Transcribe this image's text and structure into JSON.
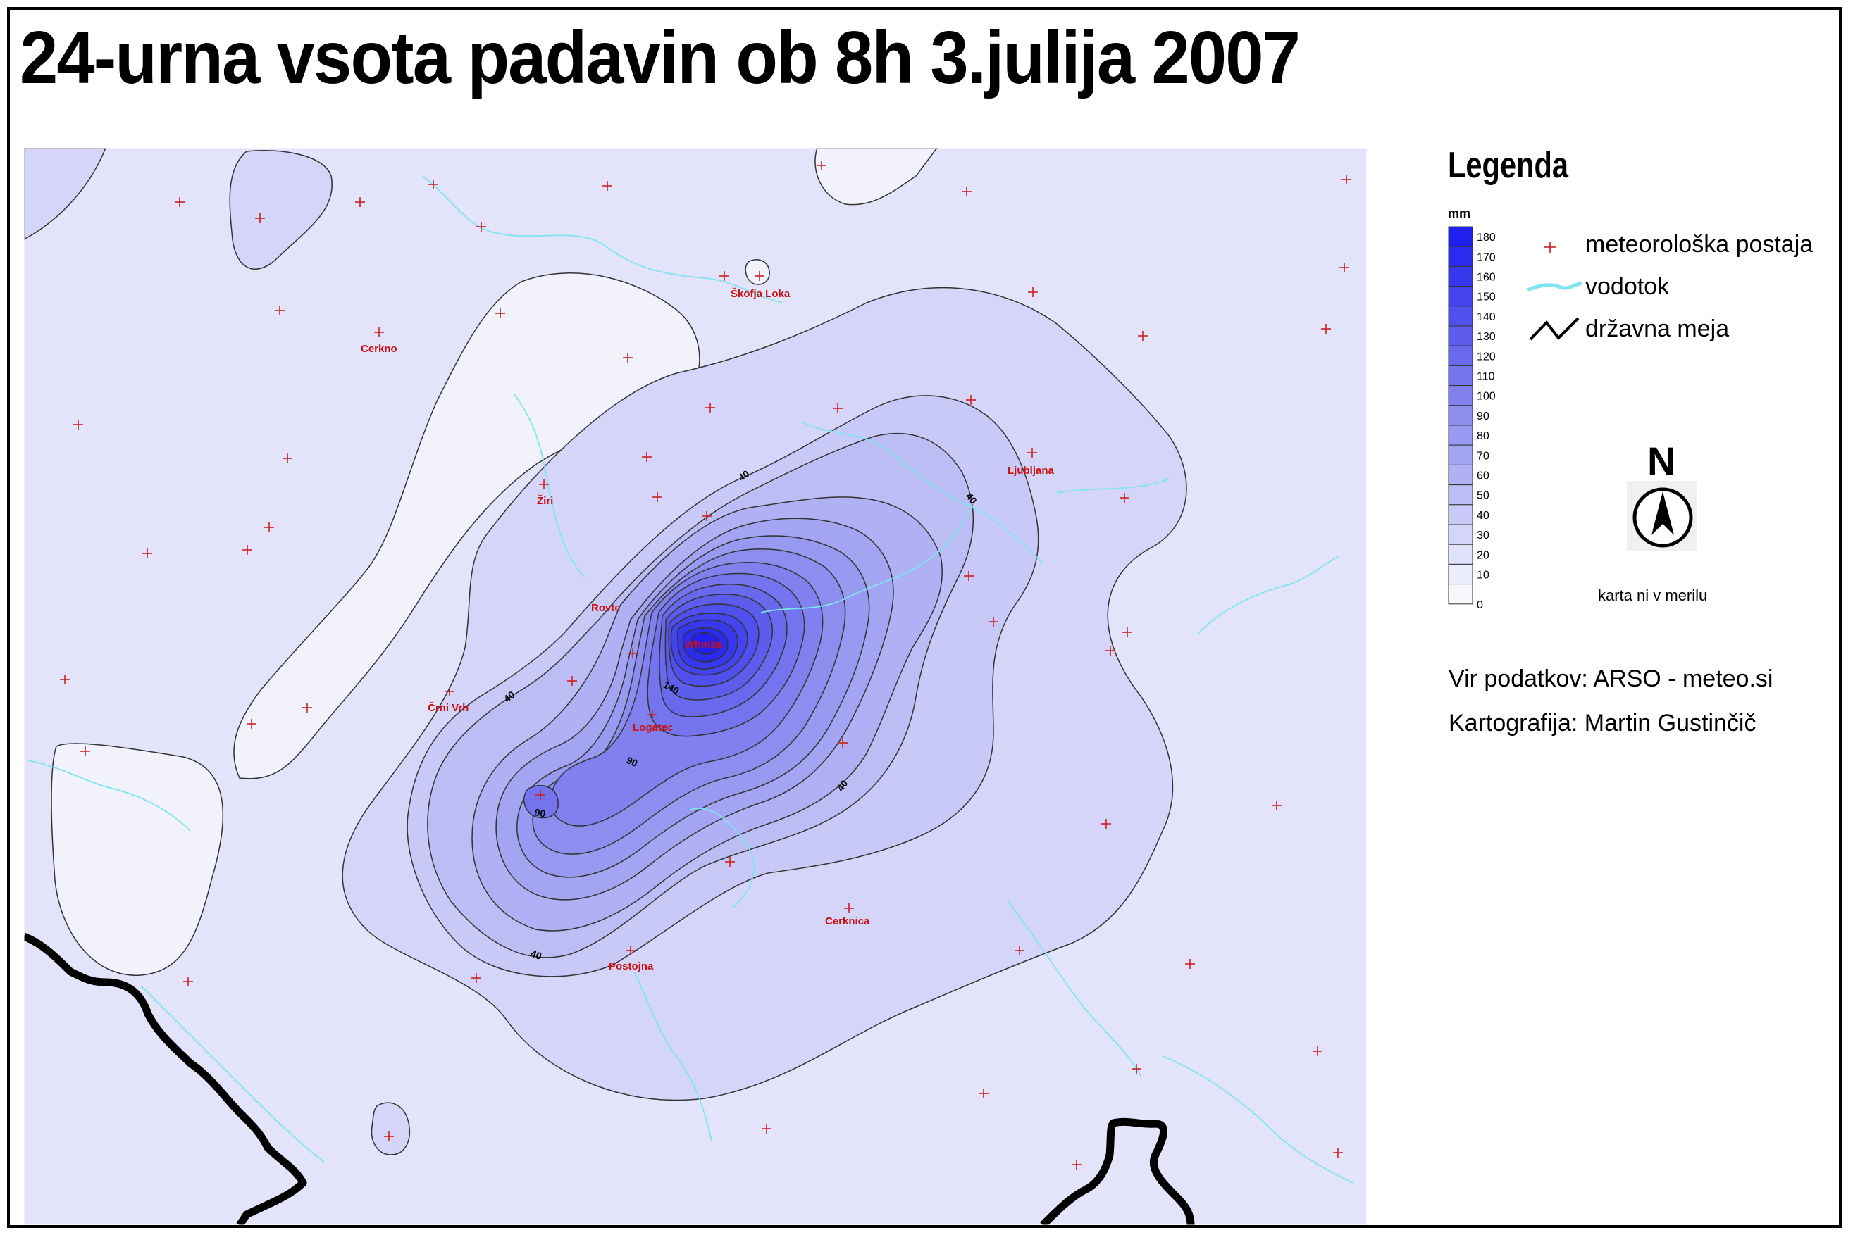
{
  "title": "24-urna vsota padavin ob 8h 3.julija 2007",
  "legend": {
    "title": "Legenda",
    "unit": "mm",
    "scale": [
      {
        "value": "180",
        "color": "#1f1ff0"
      },
      {
        "value": "170",
        "color": "#2b2bef"
      },
      {
        "value": "160",
        "color": "#3737ee"
      },
      {
        "value": "150",
        "color": "#4444ee"
      },
      {
        "value": "140",
        "color": "#5050ee"
      },
      {
        "value": "130",
        "color": "#5c5ded"
      },
      {
        "value": "120",
        "color": "#6869ed"
      },
      {
        "value": "110",
        "color": "#7475ee"
      },
      {
        "value": "100",
        "color": "#8081ef"
      },
      {
        "value": "90",
        "color": "#8c8def"
      },
      {
        "value": "80",
        "color": "#9899f0"
      },
      {
        "value": "70",
        "color": "#a4a5f2"
      },
      {
        "value": "60",
        "color": "#b0b1f4"
      },
      {
        "value": "50",
        "color": "#bcbdf5"
      },
      {
        "value": "40",
        "color": "#c8c9f7"
      },
      {
        "value": "30",
        "color": "#d4d5f8"
      },
      {
        "value": "20",
        "color": "#e0e1fa"
      },
      {
        "value": "10",
        "color": "#ebecfc"
      },
      {
        "value": "0",
        "color": "#f7f7fe"
      }
    ],
    "items": {
      "station": "meteorološka postaja",
      "river": "vodotok",
      "border": "državna meja"
    }
  },
  "north": "N",
  "scale_note": "karta ni v merilu",
  "source": "Vir podatkov: ARSO - meteo.si",
  "author": "Kartografija: Martin Gustinčič",
  "places": {
    "skofja_loka": "Škofja Loka",
    "cerkno": "Cerkno",
    "ziri": "Žiri",
    "ljubljana": "Ljubljana",
    "rovte": "Rovte",
    "vrhnika": "Vrhnika",
    "crni_vrh": "Črni Vrh",
    "logatec": "Logatec",
    "cerknica": "Cerknica",
    "postojna": "Postojna"
  },
  "contour_labels": {
    "c40a": "40",
    "c40b": "40",
    "c40c": "40",
    "c40d": "40",
    "c40e": "40",
    "c90a": "90",
    "c90b": "90",
    "c140": "140"
  },
  "colors": {
    "station": "#cc2020",
    "river": "#7fe4f0",
    "border": "#000000",
    "place_label": "#cc1010"
  },
  "icons": {
    "station": "plus-icon",
    "river": "river-line-icon",
    "border": "border-line-icon",
    "north": "north-arrow-icon"
  }
}
